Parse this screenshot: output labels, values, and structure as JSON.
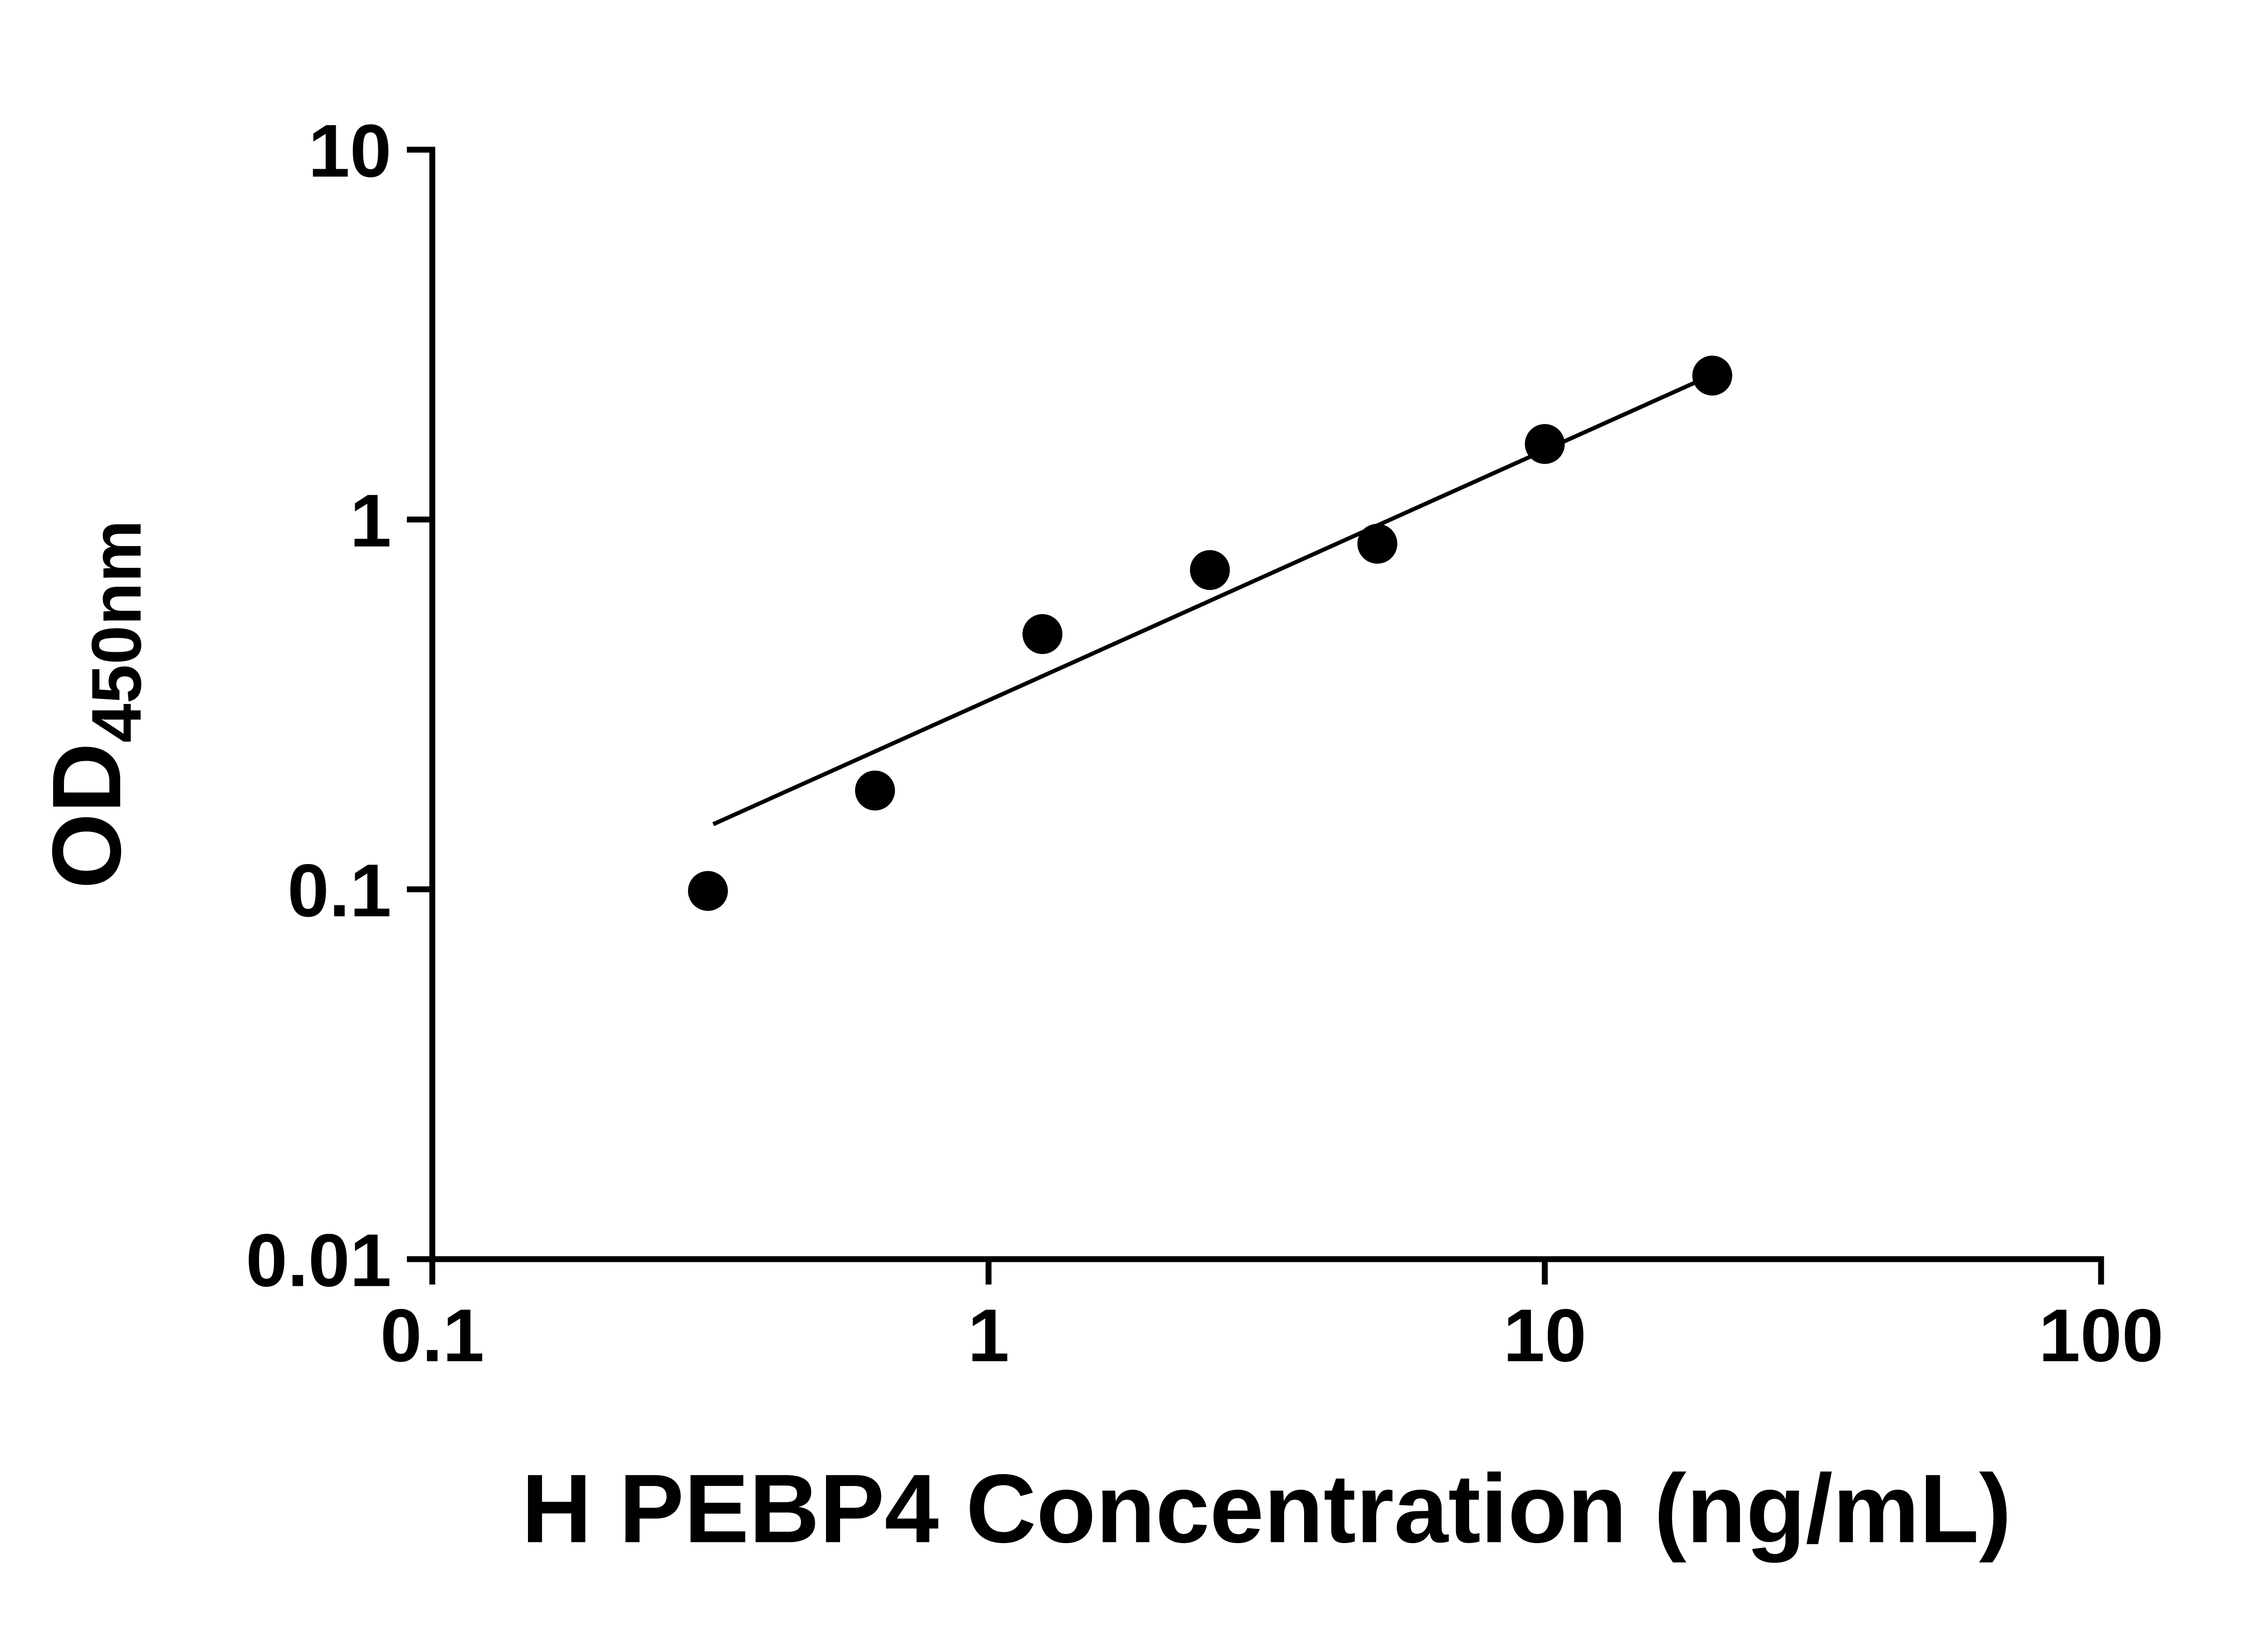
{
  "figure": {
    "background": "#ffffff",
    "ink": "#000000"
  },
  "chart_data": {
    "type": "scatter",
    "title": "",
    "xlabel": "H PEBP4 Concentration (ng/mL)",
    "ylabel_main": "OD",
    "ylabel_sub": "450nm",
    "x_scale": "log10",
    "y_scale": "log10",
    "xlim": [
      0.1,
      100
    ],
    "ylim": [
      0.01,
      10
    ],
    "grid": false,
    "x_ticks": [
      {
        "value": 0.1,
        "label": "0.1"
      },
      {
        "value": 1,
        "label": "1"
      },
      {
        "value": 10,
        "label": "10"
      },
      {
        "value": 100,
        "label": "100"
      }
    ],
    "y_ticks": [
      {
        "value": 0.01,
        "label": "0.01"
      },
      {
        "value": 0.1,
        "label": "0.1"
      },
      {
        "value": 1,
        "label": "1"
      },
      {
        "value": 10,
        "label": "10"
      }
    ],
    "series": [
      {
        "marker": "filled-circle",
        "color": "#000000",
        "points": [
          {
            "x": 0.313,
            "y": 0.099
          },
          {
            "x": 0.625,
            "y": 0.185
          },
          {
            "x": 1.25,
            "y": 0.49
          },
          {
            "x": 2.5,
            "y": 0.73
          },
          {
            "x": 5,
            "y": 0.86
          },
          {
            "x": 10,
            "y": 1.6
          },
          {
            "x": 20,
            "y": 2.45
          }
        ]
      }
    ],
    "trendline": {
      "x1": 0.32,
      "y1": 0.15,
      "x2": 19.5,
      "y2": 2.42,
      "color": "#000000"
    }
  }
}
